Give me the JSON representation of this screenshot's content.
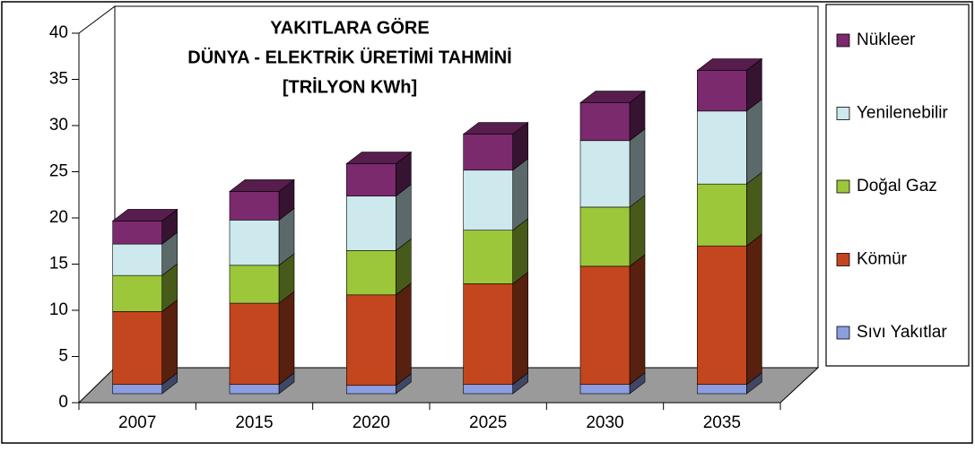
{
  "chart_data": {
    "type": "bar3d_stacked",
    "title": [
      "YAKITLARA GÖRE",
      "DÜNYA - ELEKTRİK ÜRETİMİ TAHMİNİ",
      "[TRİLYON KWh]"
    ],
    "categories": [
      "2007",
      "2015",
      "2020",
      "2025",
      "2030",
      "2035"
    ],
    "series": [
      {
        "name": "Sıvı Yakıtlar",
        "color": "#8c9ee0",
        "values": [
          1.0,
          1.0,
          0.9,
          1.0,
          1.0,
          1.0
        ]
      },
      {
        "name": "Kömür",
        "color": "#c4461e",
        "values": [
          7.9,
          8.8,
          9.8,
          10.9,
          12.8,
          15.0
        ]
      },
      {
        "name": "Doğal Gaz",
        "color": "#9dc73a",
        "values": [
          3.9,
          4.1,
          4.8,
          5.8,
          6.4,
          6.7
        ]
      },
      {
        "name": "Yenilenebilir",
        "color": "#cde9ed",
        "values": [
          3.4,
          4.9,
          5.9,
          6.5,
          7.2,
          7.9
        ]
      },
      {
        "name": "Nükleer",
        "color": "#7b2a6e",
        "values": [
          2.5,
          3.1,
          3.5,
          3.9,
          4.1,
          4.4
        ]
      }
    ],
    "ylim": [
      0,
      40
    ],
    "yticks": [
      0,
      5,
      10,
      15,
      20,
      25,
      30,
      35,
      40
    ],
    "legend": "right"
  }
}
